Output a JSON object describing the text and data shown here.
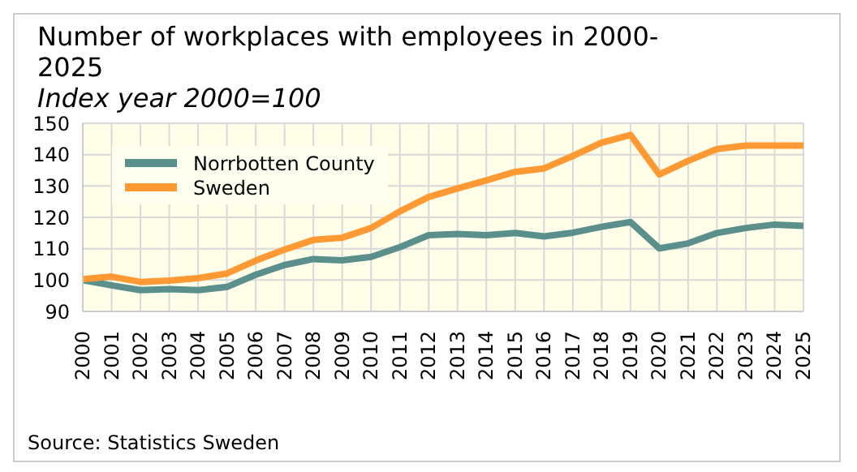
{
  "chart_data": {
    "type": "line",
    "title": "Number of workplaces with employees in 2000-2025",
    "subtitle": "Index year 2000=100",
    "categories": [
      "2000",
      "2001",
      "2002",
      "2003",
      "2004",
      "2005",
      "2006",
      "2007",
      "2008",
      "2009",
      "2010",
      "2011",
      "2012",
      "2013",
      "2014",
      "2015",
      "2016",
      "2017",
      "2018",
      "2019",
      "2020",
      "2021",
      "2022",
      "2023",
      "2024",
      "2025"
    ],
    "series": [
      {
        "name": "Norrbotten County",
        "color": "#5a8f8c",
        "values": [
          100,
          98.3,
          96.8,
          97.1,
          96.8,
          97.8,
          101.7,
          104.8,
          106.7,
          106.3,
          107.4,
          110.5,
          114.3,
          114.7,
          114.3,
          115.0,
          113.9,
          115.1,
          117.0,
          118.5,
          110.1,
          111.7,
          115.0,
          116.6,
          117.7,
          117.3
        ]
      },
      {
        "name": "Sweden",
        "color": "#ff9933",
        "values": [
          100.3,
          101.1,
          99.4,
          99.8,
          100.6,
          102.1,
          106.2,
          109.7,
          112.8,
          113.5,
          116.6,
          121.9,
          126.5,
          129.2,
          131.8,
          134.5,
          135.6,
          139.6,
          143.8,
          146.3,
          133.7,
          138.0,
          141.8,
          142.9,
          142.9,
          142.9
        ]
      }
    ],
    "ylim": [
      90,
      150
    ],
    "yticks": [
      90,
      100,
      110,
      120,
      130,
      140,
      150
    ],
    "grid": true,
    "legend": "top left",
    "marker": "none",
    "line_style": "solid",
    "annotations": [
      "Source: Statistics Sweden"
    ]
  }
}
